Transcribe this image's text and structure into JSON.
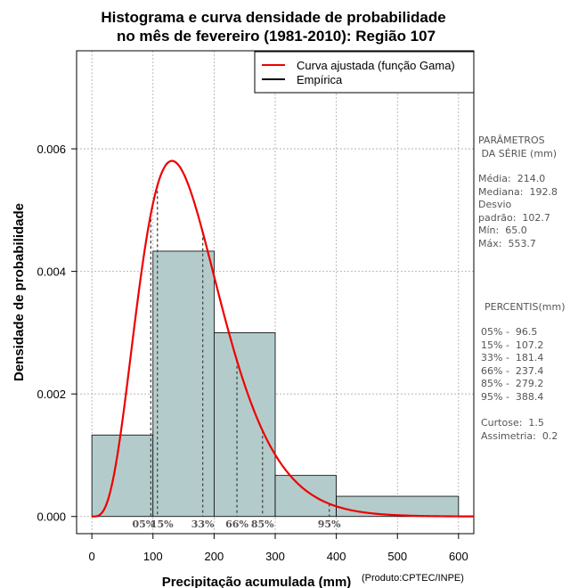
{
  "chart_data": {
    "type": "histogram",
    "title_line1": "Histograma e curva densidade de probabilidade",
    "title_line2": "no mês de fevereiro (1981-2010): Região 107",
    "xlabel": "Precipitação acumulada (mm)",
    "ylabel": "Densidade de probabilidade",
    "credit": "(Produto:CPTEC/INPE)",
    "xlim": [
      -25,
      625
    ],
    "ylim": [
      -0.00028,
      0.0076
    ],
    "x_ticks": [
      0,
      100,
      200,
      300,
      400,
      500,
      600
    ],
    "y_ticks": [
      0.0,
      0.002,
      0.004,
      0.006
    ],
    "y_tick_labels": [
      "0.000",
      "0.002",
      "0.004",
      "0.006"
    ],
    "bins": [
      {
        "start": 0,
        "end": 100,
        "density": 0.00133
      },
      {
        "start": 100,
        "end": 200,
        "density": 0.00433
      },
      {
        "start": 200,
        "end": 300,
        "density": 0.003
      },
      {
        "start": 300,
        "end": 400,
        "density": 0.00067
      },
      {
        "start": 400,
        "end": 600,
        "density": 0.00033
      }
    ],
    "gamma_fit": {
      "shape": 4.8,
      "scale": 34.5,
      "name": "Curva ajustada (função Gama)"
    },
    "legend": [
      {
        "label": "Curva ajustada (função Gama)",
        "color": "#ee0000"
      },
      {
        "label": "Empírica",
        "color": "#000000"
      }
    ],
    "percentile_markers": [
      {
        "label": "05%",
        "value": 96.5
      },
      {
        "label": "15%",
        "value": 107.2
      },
      {
        "label": "33%",
        "value": 181.4
      },
      {
        "label": "66%",
        "value": 237.4
      },
      {
        "label": "85%",
        "value": 279.2
      },
      {
        "label": "95%",
        "value": 388.4
      }
    ],
    "colors": {
      "bar_fill": "#b3cccb",
      "curve": "#ee0000",
      "grid": "#aaaaaa"
    }
  },
  "parameters_panel": {
    "heading": "PARÂMETROS\n DA SÉRIE (mm)",
    "body": "Média:  214.0\nMediana:  192.8\nDesvio\npadrão:  102.7\nMín:  65.0\nMáx:  553.7"
  },
  "percentiles_panel": {
    "heading": "PERCENTIS(mm)",
    "body": "05% -  96.5\n15% -  107.2\n33% -  181.4\n66% -  237.4\n85% -  279.2\n95% -  388.4\n\nCurtose:  1.5\nAssimetria:  0.2"
  }
}
